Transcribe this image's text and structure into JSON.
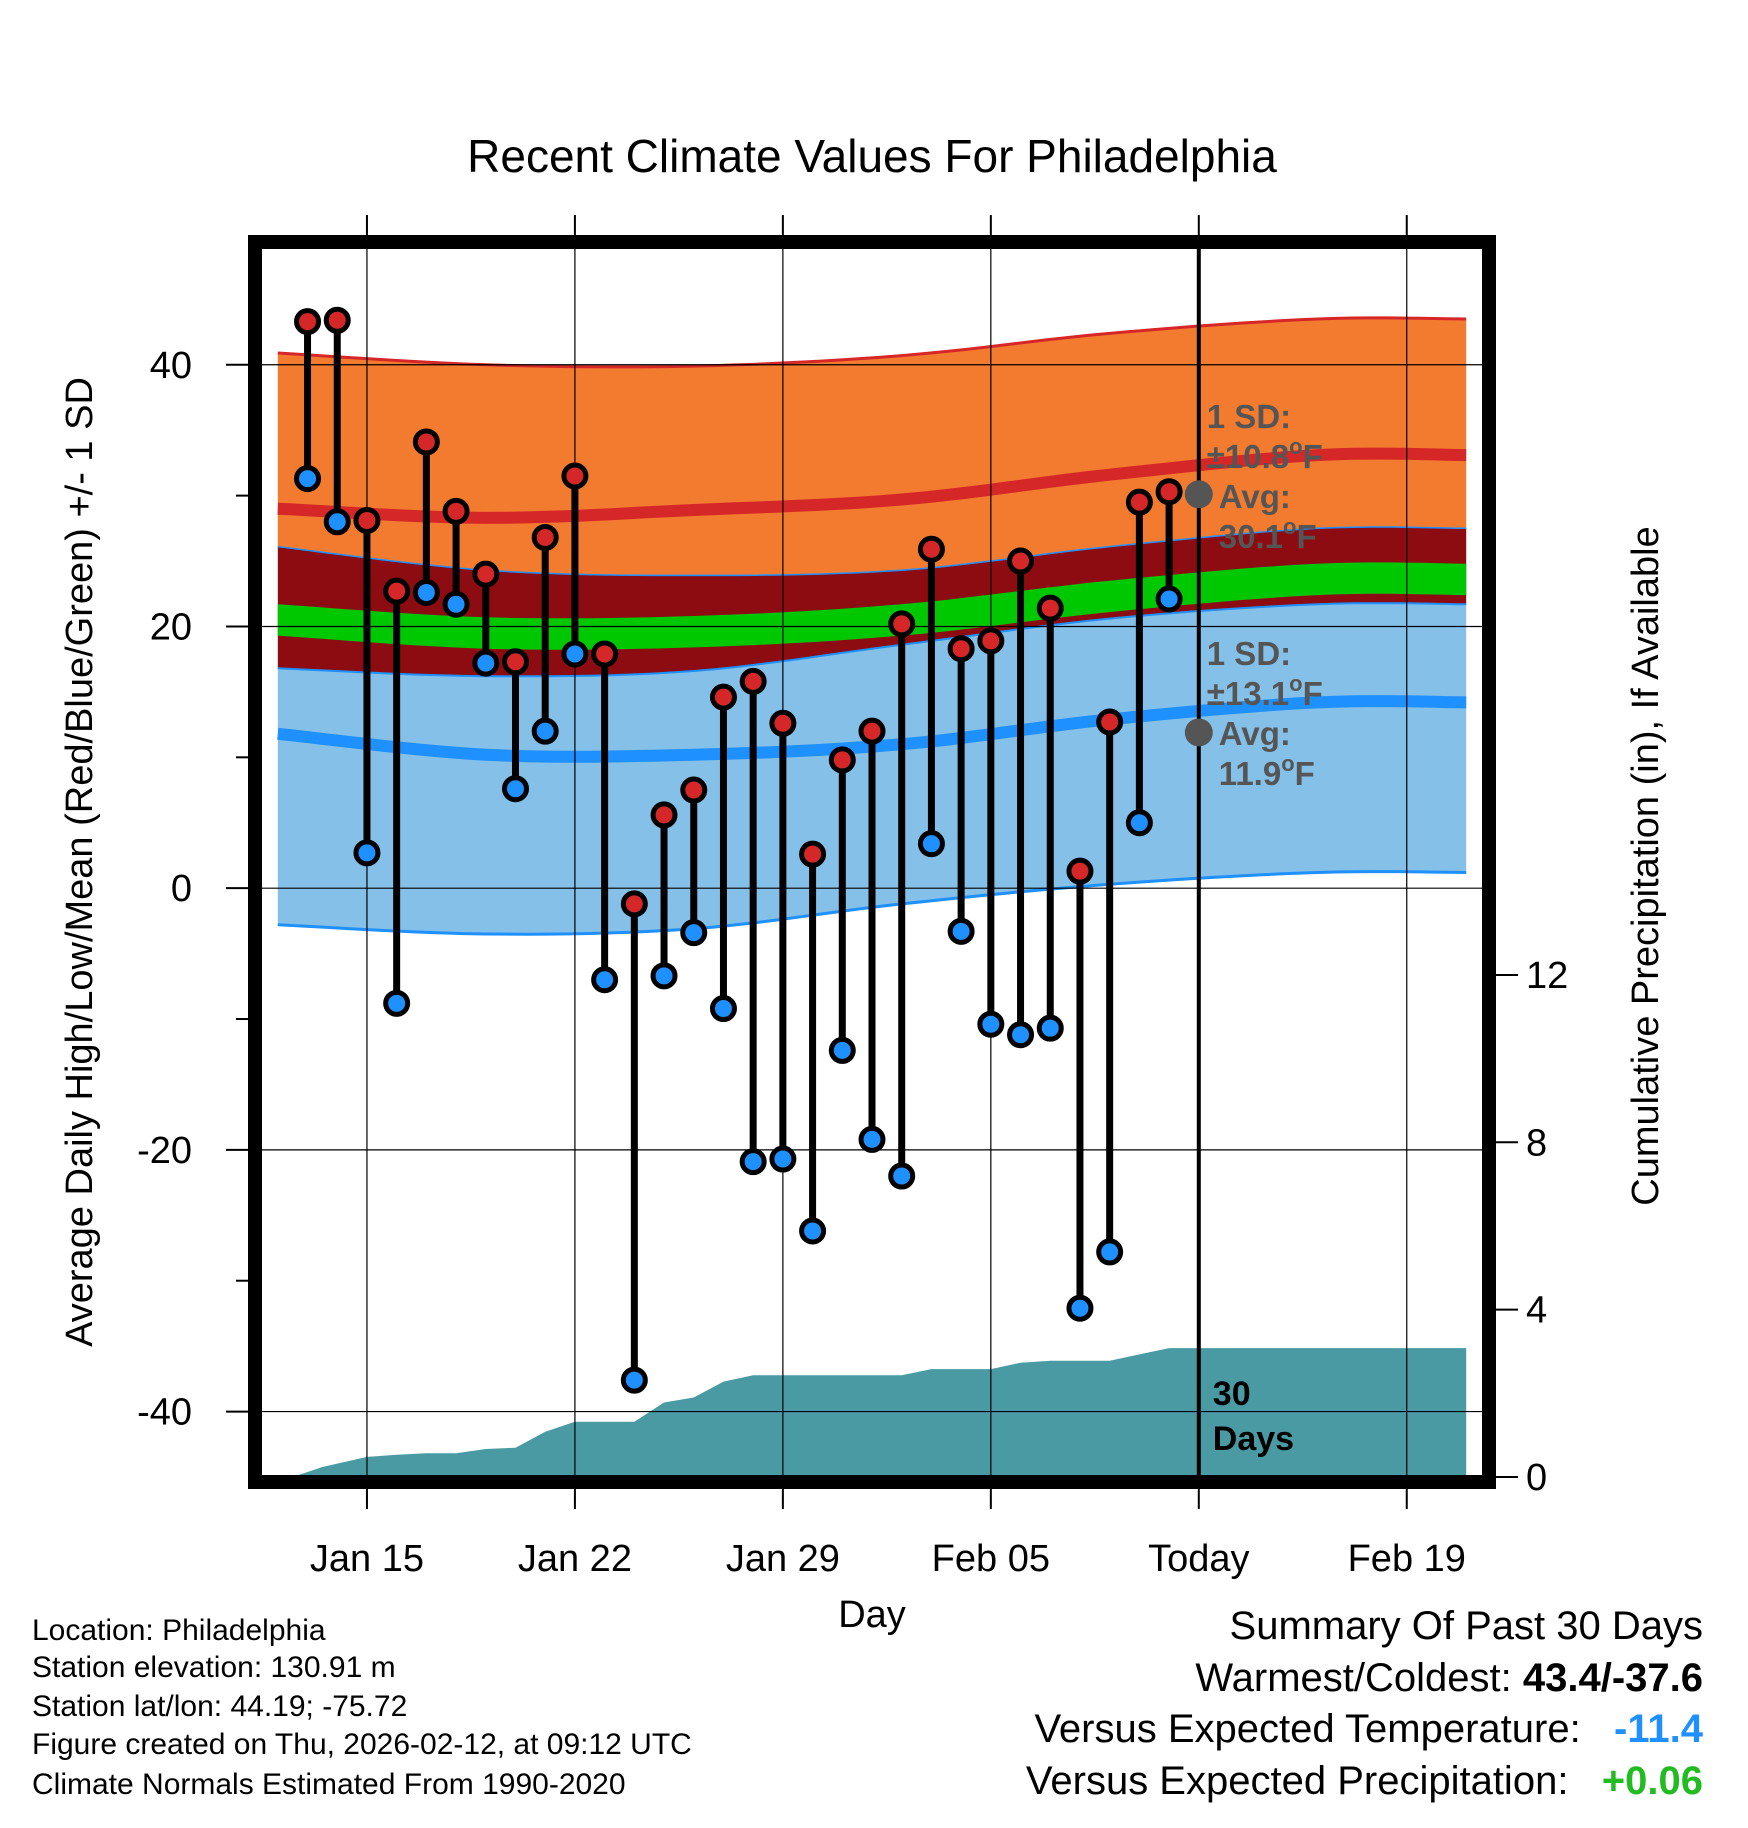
{
  "chart_data": {
    "type": "line",
    "title": "Recent Climate Values For Philadelphia",
    "xlabel": "Day",
    "ylabel": "Average Daily High/Low/Mean (Red/Blue/Green) +/- 1 SD",
    "y2label": "Cumulative Precipitation (in), If Available",
    "ylim": [
      -45,
      49
    ],
    "y2lim": [
      0,
      29.4
    ],
    "xlim": [
      -3.6,
      37.6
    ],
    "x_ticks": [
      {
        "x": 0,
        "label": "Jan 15"
      },
      {
        "x": 7,
        "label": "Jan 22"
      },
      {
        "x": 14,
        "label": "Jan 29"
      },
      {
        "x": 21,
        "label": "Feb 05"
      },
      {
        "x": 28,
        "label": "Today"
      },
      {
        "x": 35,
        "label": "Feb 19"
      }
    ],
    "y_ticks": [
      -40,
      -20,
      0,
      20,
      40
    ],
    "y2_ticks": [
      0,
      4,
      8,
      12
    ],
    "today_x": 28,
    "days": [
      -2,
      -1,
      0,
      1,
      2,
      3,
      4,
      5,
      6,
      7,
      8,
      9,
      10,
      11,
      12,
      13,
      14,
      15,
      16,
      17,
      18,
      19,
      20,
      21,
      22,
      23,
      24,
      25,
      26,
      27
    ],
    "series": [
      {
        "name": "Daily High",
        "color": "#d62728",
        "values": [
          43.3,
          43.4,
          28.1,
          22.7,
          34.1,
          28.8,
          24.0,
          17.3,
          26.8,
          31.5,
          17.9,
          -1.2,
          5.6,
          7.5,
          14.6,
          15.8,
          12.6,
          2.6,
          9.8,
          12.0,
          20.2,
          25.9,
          18.3,
          18.9,
          25.0,
          21.4,
          1.3,
          12.7,
          29.5,
          30.3
        ]
      },
      {
        "name": "Daily Low",
        "color": "#1e90ff",
        "values": [
          31.3,
          28.0,
          2.7,
          -8.8,
          22.6,
          21.7,
          17.2,
          7.6,
          12.0,
          17.9,
          -7.0,
          -37.6,
          -6.7,
          -3.4,
          -9.2,
          -20.9,
          -20.7,
          -26.2,
          -12.4,
          -19.2,
          -22.0,
          3.4,
          -3.3,
          -10.4,
          -11.2,
          -10.7,
          -32.1,
          -27.8,
          5.0,
          22.1
        ]
      }
    ],
    "normals": {
      "high_avg": [
        29.0,
        28.3,
        28.9,
        29.7,
        31.6,
        33.1
      ],
      "high_sd_upper": [
        40.9,
        40.0,
        39.9,
        40.7,
        42.4,
        43.5
      ],
      "high_sd_lower": [
        26.1,
        24.3,
        23.9,
        24.3,
        26.1,
        27.5
      ],
      "mean_avg": [
        20.3,
        19.3,
        19.4,
        20.3,
        22.1,
        23.4
      ],
      "low_avg": [
        11.8,
        10.2,
        10.2,
        11.0,
        12.9,
        14.2
      ],
      "low_sd_upper": [
        16.8,
        16.2,
        16.6,
        18.6,
        20.6,
        21.7
      ],
      "low_sd_lower": [
        -2.8,
        -3.5,
        -3.1,
        -1.2,
        0.3,
        1.2
      ],
      "x_nodes": [
        -3,
        4,
        11,
        18,
        25,
        32,
        37
      ]
    },
    "precip_cumulative": {
      "x": [
        -2.5,
        -1.5,
        0,
        1,
        2,
        3,
        4,
        5,
        6,
        7,
        8,
        9,
        10,
        11,
        12,
        13,
        14,
        15,
        16,
        17,
        18,
        19,
        20,
        21,
        22,
        23,
        24,
        25,
        26,
        27,
        28,
        37
      ],
      "values": [
        0.0,
        0.24,
        0.48,
        0.53,
        0.57,
        0.57,
        0.67,
        0.7,
        1.08,
        1.32,
        1.32,
        1.32,
        1.78,
        1.9,
        2.28,
        2.43,
        2.43,
        2.43,
        2.43,
        2.43,
        2.43,
        2.58,
        2.58,
        2.58,
        2.73,
        2.78,
        2.78,
        2.78,
        2.93,
        3.08,
        3.08,
        3.08
      ]
    },
    "annotations": {
      "high_sd_title": "1 SD:",
      "high_sd_value": "±10.8",
      "high_avg_title": "Avg:",
      "high_avg_value": "30.1",
      "low_sd_title": "1 SD:",
      "low_sd_value": "±13.1",
      "low_avg_title": "Avg:",
      "low_avg_value": "11.9",
      "unit": "F",
      "degree_mark": "o",
      "high_avg_marker_value": 30.1,
      "low_avg_marker_value": 11.9,
      "days_label_line1": "30",
      "days_label_line2": "Days"
    },
    "colors": {
      "high_band": "#f37b2f",
      "high_band_edge": "#d62728",
      "high_avg_line": "#d62728",
      "dark_band": "#8c0c12",
      "mean_band": "#00c800",
      "low_band": "#85c0e8",
      "low_band_edge": "#1e90ff",
      "low_avg_line": "#1e90ff",
      "precip": "#4a9aa3",
      "annotation": "#555555"
    }
  },
  "info": {
    "location": "Location: Philadelphia",
    "elevation": "Station elevation: 130.91 m",
    "latlon": "Station lat/lon: 44.19; -75.72",
    "created": "Figure created on Thu, 2026-02-12, at 09:12 UTC",
    "normals": "Climate Normals Estimated From 1990-2020"
  },
  "summary": {
    "heading": "Summary Of Past 30 Days",
    "warm_cold_label": "Warmest/Coldest:",
    "warm_cold_value": "43.4/-37.6",
    "temp_label": "Versus Expected Temperature:",
    "temp_value": "-11.4",
    "temp_color": "#1e90ff",
    "precip_label": "Versus Expected Precipitation:",
    "precip_value": "+0.06",
    "precip_color": "#22bb22"
  }
}
